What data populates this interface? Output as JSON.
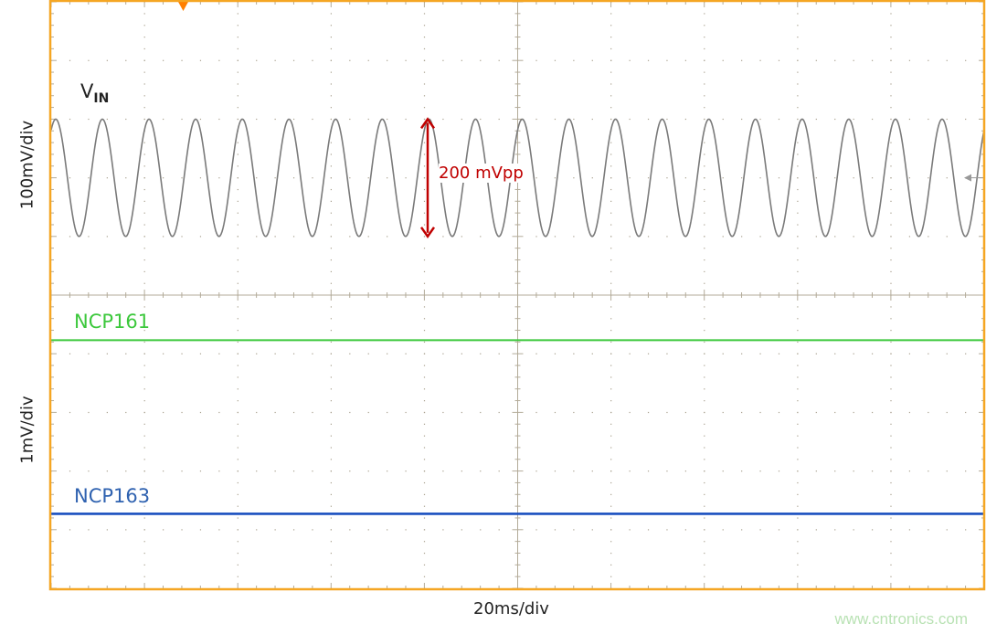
{
  "chart_data": {
    "type": "line",
    "title": "",
    "xlabel": "20ms/div",
    "grid": true,
    "horizontal_divisions": 10,
    "vertical_divisions": 10,
    "xlim_ms": [
      0,
      200
    ],
    "panels": [
      {
        "ylabel": "100mV/div"
      },
      {
        "ylabel": "1mV/div"
      }
    ],
    "series": [
      {
        "name": "VIN",
        "label_main": "V",
        "label_sub": "IN",
        "shape": "sine",
        "amplitude_pp_mV": 200,
        "frequency_hz": 100,
        "cycles_shown": 20,
        "color": "#7a7a7a"
      },
      {
        "name": "NCP161",
        "shape": "flat",
        "color": "#3cc83c"
      },
      {
        "name": "NCP163",
        "shape": "flat",
        "color": "#1a4fbf"
      }
    ],
    "annotations": [
      {
        "text": "200 mVpp",
        "color": "#c00000"
      }
    ],
    "frame_color": "#f5a623",
    "trigger_marker_color": "#ff7f00"
  },
  "watermark": "www.cntronics.com"
}
